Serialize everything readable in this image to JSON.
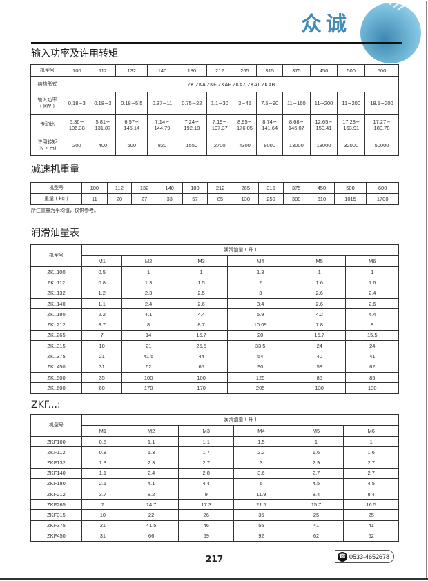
{
  "brand": {
    "name": "众诚"
  },
  "sections": {
    "power_title": "输入功率及许用转矩",
    "weight_title": "减速机重量",
    "oil_title": "润滑油量表",
    "zkf_title": "ZKF...:"
  },
  "power_table": {
    "rows": [
      [
        "机型号",
        "100",
        "112",
        "132",
        "140",
        "180",
        "212",
        "265",
        "315",
        "375",
        "450",
        "500",
        "600"
      ],
      [
        "结构形式",
        "ZK    ZKA    ZKF    ZKAF    ZKAZ    ZKAT    ZKAB"
      ],
      [
        "输入功率\n( KW )",
        "0.18∽3",
        "0.18∽3",
        "0.18∽5.5",
        "0.37∽11",
        "0.75∽22",
        "1.1∽30",
        "3∽45",
        "7.5∽90",
        "11∽160",
        "11∽200",
        "11∽200",
        "18.5∽200"
      ],
      [
        "传动比",
        "5.36∽\n106.38",
        "5.81∽\n131.87",
        "6.57∽\n145.14",
        "7.14∽\n144.79",
        "7.24∽\n192.18",
        "7.19∽\n197.37",
        "8.95∽\n176.05",
        "8.74∽\n141.64",
        "8.68∽\n146.07",
        "12.65∽\n150.41",
        "17.28∽\n163.91",
        "17.27∽\n180.78"
      ],
      [
        "许用转矩\n(N • m)",
        "200",
        "400",
        "600",
        "820",
        "1550",
        "2700",
        "4300",
        "8000",
        "13000",
        "18000",
        "32000",
        "50000"
      ]
    ]
  },
  "weight_table": {
    "rows": [
      [
        "机型号",
        "100",
        "112",
        "132",
        "140",
        "180",
        "212",
        "265",
        "315",
        "375",
        "450",
        "500",
        "600"
      ],
      [
        "重量 ( kg )",
        "11",
        "20",
        "27",
        "33",
        "57",
        "85",
        "130",
        "250",
        "380",
        "610",
        "1015",
        "1700"
      ]
    ],
    "note": "所注重量为平均值，仅供参考。"
  },
  "oil_table": {
    "model_header": "机型号",
    "group_header": "润滑油量 ( 升 )",
    "columns": [
      "M1",
      "M2",
      "M3",
      "M4",
      "M5",
      "M6"
    ],
    "rows": [
      [
        "ZK..100",
        "0.5",
        "1",
        "1",
        "1.3",
        "1",
        "1"
      ],
      [
        "ZK..112",
        "0.8",
        "1.3",
        "1.5",
        "2",
        "1.6",
        "1.6"
      ],
      [
        "ZK..132",
        "1.2",
        "2.3",
        "2.5",
        "3",
        "2.6",
        "2.4"
      ],
      [
        "ZK..140",
        "1.1",
        "2.4",
        "2.6",
        "3.4",
        "2.6",
        "2.6"
      ],
      [
        "ZK..180",
        "2.2",
        "4.1",
        "4.4",
        "5.9",
        "4.2",
        "4.4"
      ],
      [
        "ZK..212",
        "3.7",
        "8",
        "8.7",
        "10.09",
        "7.8",
        "8"
      ],
      [
        "ZK..265",
        "7",
        "14",
        "15.7",
        "20",
        "15.7",
        "15.5"
      ],
      [
        "ZK..315",
        "10",
        "21",
        "25.5",
        "33.5",
        "24",
        "24"
      ],
      [
        "ZK..375",
        "21",
        "41.5",
        "44",
        "54",
        "40",
        "41"
      ],
      [
        "ZK..450",
        "31",
        "62",
        "65",
        "90",
        "58",
        "62"
      ],
      [
        "ZK..500",
        "35",
        "100",
        "100",
        "125",
        "85",
        "85"
      ],
      [
        "ZK..600",
        "60",
        "170",
        "170",
        "205",
        "130",
        "130"
      ]
    ]
  },
  "zkf_table": {
    "model_header": "机型号",
    "group_header": "润滑油量 ( 升 )",
    "columns": [
      "M1",
      "M2",
      "M3",
      "M4",
      "M5",
      "M6"
    ],
    "rows": [
      [
        "ZKF100",
        "0.5",
        "1.1",
        "1.1",
        "1.5",
        "1",
        "1"
      ],
      [
        "ZKF112",
        "0.8",
        "1.3",
        "1.7",
        "2.2",
        "1.6",
        "1.6"
      ],
      [
        "ZKF132",
        "1.3",
        "2.3",
        "2.7",
        "3",
        "2.9",
        "2.7"
      ],
      [
        "ZKF140",
        "1.1",
        "2.4",
        "2.8",
        "3.6",
        "2.7",
        "2.7"
      ],
      [
        "ZKF180",
        "2.1",
        "4.1",
        "4.4",
        "6",
        "4.5",
        "4.5"
      ],
      [
        "ZKF212",
        "3.7",
        "8.2",
        "9",
        "11.9",
        "8.4",
        "8.4"
      ],
      [
        "ZKF265",
        "7",
        "14.7",
        "17.3",
        "21.5",
        "15.7",
        "16.5"
      ],
      [
        "ZKF315",
        "10",
        "22",
        "26",
        "35",
        "25",
        "25"
      ],
      [
        "ZKF375",
        "21",
        "41.5",
        "46",
        "55",
        "41",
        "41"
      ],
      [
        "ZKF450",
        "31",
        "66",
        "69",
        "92",
        "62",
        "62"
      ]
    ]
  },
  "footer": {
    "page_number": "217",
    "phone": "0533-4652678",
    "phone_icon": "telephone-icon"
  }
}
